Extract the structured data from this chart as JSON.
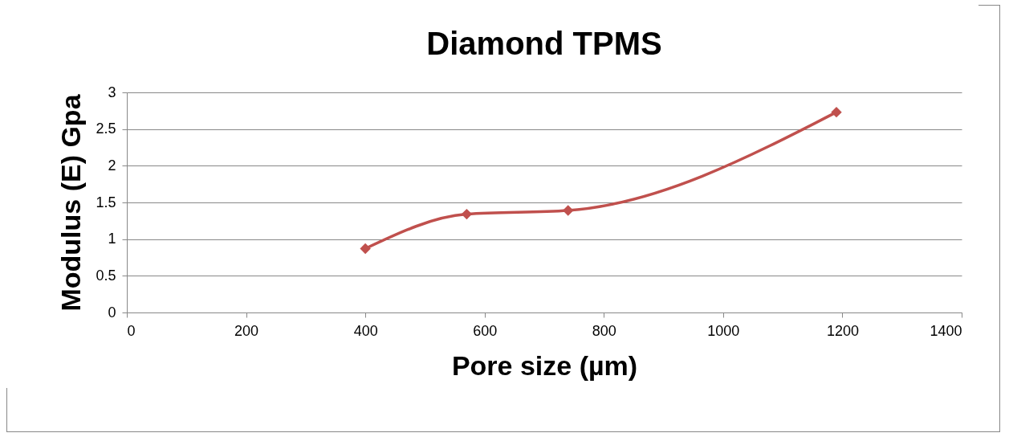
{
  "chart_data": {
    "type": "line",
    "title": "Diamond TPMS",
    "xlabel": "Pore size (µm)",
    "ylabel": "Modulus (E) Gpa",
    "x": [
      400,
      570,
      740,
      1190
    ],
    "series": [
      {
        "color": "#c0504d",
        "values": [
          0.87,
          1.34,
          1.39,
          2.73
        ]
      }
    ],
    "xlim": [
      0,
      1400
    ],
    "xticks": [
      0,
      200,
      400,
      600,
      800,
      1000,
      1200,
      1400
    ],
    "ylim": [
      0,
      3
    ],
    "yticks": [
      0,
      0.5,
      1,
      1.5,
      2,
      2.5,
      3
    ],
    "grid": "y",
    "marker": "diamond",
    "line_style": "solid"
  }
}
